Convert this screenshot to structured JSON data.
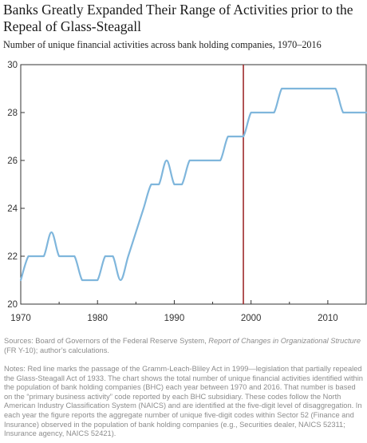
{
  "title": "Banks Greatly Expanded Their Range of Activities prior to the Repeal of Glass-Steagall",
  "subtitle": "Number of unique financial activities across bank holding companies, 1970–2016",
  "sources": {
    "prefix": "Sources: Board of Governors of the Federal Reserve System, ",
    "report": "Report of Changes in Organizational Structure",
    "suffix": " (FR Y-10); author’s calculations."
  },
  "notes": "Notes: Red line marks the passage of the Gramm-Leach-Bliley Act in 1999—legislation that partially repealed the Glass-Steagall Act of 1933. The chart shows the total number of unique financial activities identified within the population of bank holding companies (BHC) each year between 1970 and 2016. That number is based on the “primary business activity” code reported by each BHC subsidiary. These codes follow the North American Industry Classification System (NAICS) and are identified at the five-digit level of disaggregation. In each year the figure reports the aggregate number of unique five-digit codes within Sector 52 (Finance and Insurance) observed in the population of bank holding companies (e.g., Securities dealer, NAICS 52311; Insurance agency, NAICS 52421).",
  "colors": {
    "line": "#7fb6dc",
    "marker": "#9e2a2b",
    "axis": "#333333"
  },
  "chart_data": {
    "type": "line",
    "title": "Banks Greatly Expanded Their Range of Activities prior to the Repeal of Glass-Steagall",
    "subtitle": "Number of unique financial activities across bank holding companies, 1970–2016",
    "xlabel": "",
    "ylabel": "",
    "xlim": [
      1970,
      2015
    ],
    "ylim": [
      20,
      30
    ],
    "xticks": [
      1970,
      1980,
      1990,
      2000,
      2010
    ],
    "yticks": [
      20,
      22,
      24,
      26,
      28,
      30
    ],
    "grid": false,
    "legend": "none",
    "series": [
      {
        "x": [
          1970,
          1971,
          1972,
          1973,
          1974,
          1975,
          1976,
          1977,
          1978,
          1979,
          1980,
          1981,
          1982,
          1983,
          1984,
          1985,
          1986,
          1987,
          1988,
          1989,
          1990,
          1991,
          1992,
          1993,
          1994,
          1995,
          1996,
          1997,
          1998,
          1999,
          2000,
          2001,
          2002,
          2003,
          2004,
          2005,
          2006,
          2007,
          2008,
          2009,
          2010,
          2011,
          2012,
          2013,
          2014,
          2015
        ],
        "values": [
          21,
          22,
          22,
          22,
          23,
          22,
          22,
          22,
          21,
          21,
          21,
          22,
          22,
          21,
          22,
          23,
          24,
          25,
          25,
          26,
          25,
          25,
          26,
          26,
          26,
          26,
          26,
          27,
          27,
          27,
          28,
          28,
          28,
          28,
          29,
          29,
          29,
          29,
          29,
          29,
          29,
          29,
          28,
          28,
          28,
          28
        ]
      }
    ],
    "annotations": [
      {
        "type": "vertical-line",
        "x": 1999,
        "label": "Gramm-Leach-Bliley Act"
      }
    ]
  }
}
